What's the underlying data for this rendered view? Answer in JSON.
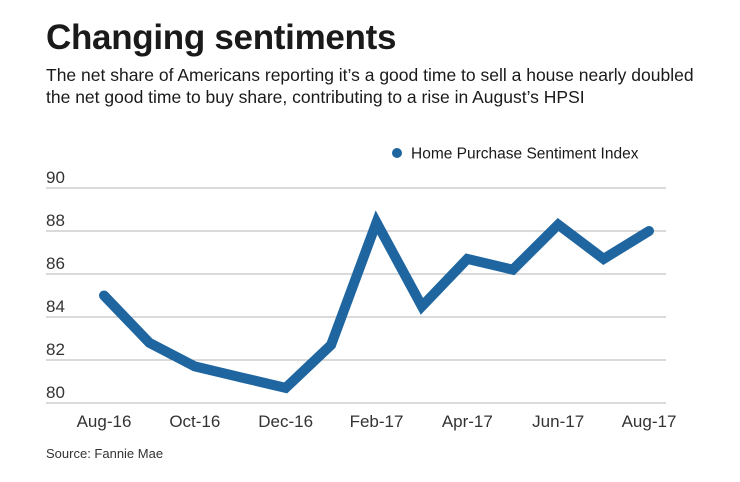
{
  "title": "Changing sentiments",
  "subtitle": "The net share of Americans reporting it’s a good time to sell a house nearly doubled the net good time to buy share, contributing to a rise in August’s HPSI",
  "source": "Source: Fannie Mae",
  "colors": {
    "series": "#1f66a0",
    "grid": "#b5b5b5"
  },
  "chart_data": {
    "type": "line",
    "title": "Changing sentiments",
    "xlabel": "",
    "ylabel": "",
    "grid": true,
    "legend_position": "top-right",
    "ylim": [
      80,
      90
    ],
    "yticks": [
      80,
      82,
      84,
      86,
      88,
      90
    ],
    "x": [
      "Aug-16",
      "Sep-16",
      "Oct-16",
      "Nov-16",
      "Dec-16",
      "Jan-17",
      "Feb-17",
      "Mar-17",
      "Apr-17",
      "May-17",
      "Jun-17",
      "Jul-17",
      "Aug-17"
    ],
    "xtick_labels": [
      "Aug-16",
      "Oct-16",
      "Dec-16",
      "Feb-17",
      "Apr-17",
      "Jun-17",
      "Aug-17"
    ],
    "series": [
      {
        "name": "Home Purchase Sentiment Index",
        "values": [
          85.0,
          82.8,
          81.7,
          81.2,
          80.7,
          82.7,
          88.4,
          84.5,
          86.7,
          86.2,
          88.3,
          86.7,
          88.0
        ]
      }
    ]
  }
}
